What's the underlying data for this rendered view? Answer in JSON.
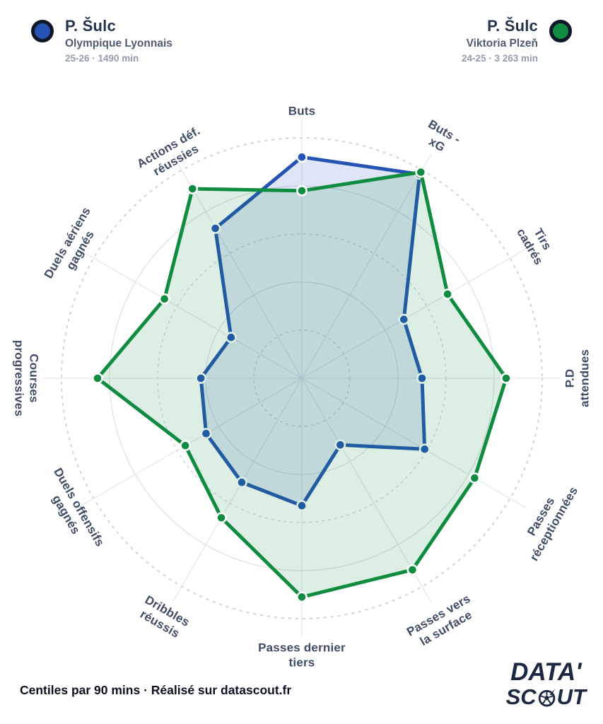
{
  "header": {
    "left": {
      "name": "P. Šulc",
      "club": "Olympique Lyonnais",
      "meta": "25-26 · 1490 min"
    },
    "right": {
      "name": "P. Šulc",
      "club": "Viktoria Plzeň",
      "meta": "24-25 · 3 263 min"
    }
  },
  "chart_data": {
    "type": "radar",
    "title": "",
    "scale": {
      "min": 0,
      "max": 100,
      "rings": [
        20,
        40,
        60,
        80,
        100
      ]
    },
    "grid": "circular",
    "legend_position": "top",
    "categories": [
      "Buts",
      "Buts -\nxG",
      "Tirs\ncadrés",
      "P.D\nattendues",
      "Passes\nréceptionnées",
      "Passes vers\nla surface",
      "Passes dernier\ntiers",
      "Dribbles\nréussis",
      "Duels offensifs\ngagnés",
      "Courses\nprogressives",
      "Duels aériens\ngagnés",
      "Actions déf.\nréussies"
    ],
    "series": [
      {
        "name": "P. Šulc — Olympique Lyonnais 25-26",
        "color": "#2553b3",
        "fill": "rgba(37,83,179,0.15)",
        "values": [
          92,
          98,
          49,
          50,
          59,
          32,
          53,
          50,
          46,
          42,
          34,
          72
        ]
      },
      {
        "name": "P. Šulc — Viktoria Plzeň 24-25",
        "color": "#0f8c3f",
        "fill": "rgba(15,140,63,0.14)",
        "values": [
          78,
          99,
          70,
          85,
          83,
          92,
          91,
          67,
          56,
          85,
          66,
          91
        ]
      }
    ]
  },
  "footer": {
    "note": "Centiles par 90 mins · Réalisé sur datascout.fr"
  },
  "logo": {
    "line1": "DATA'",
    "line2_pre": "SC",
    "line2_post": "UT"
  }
}
